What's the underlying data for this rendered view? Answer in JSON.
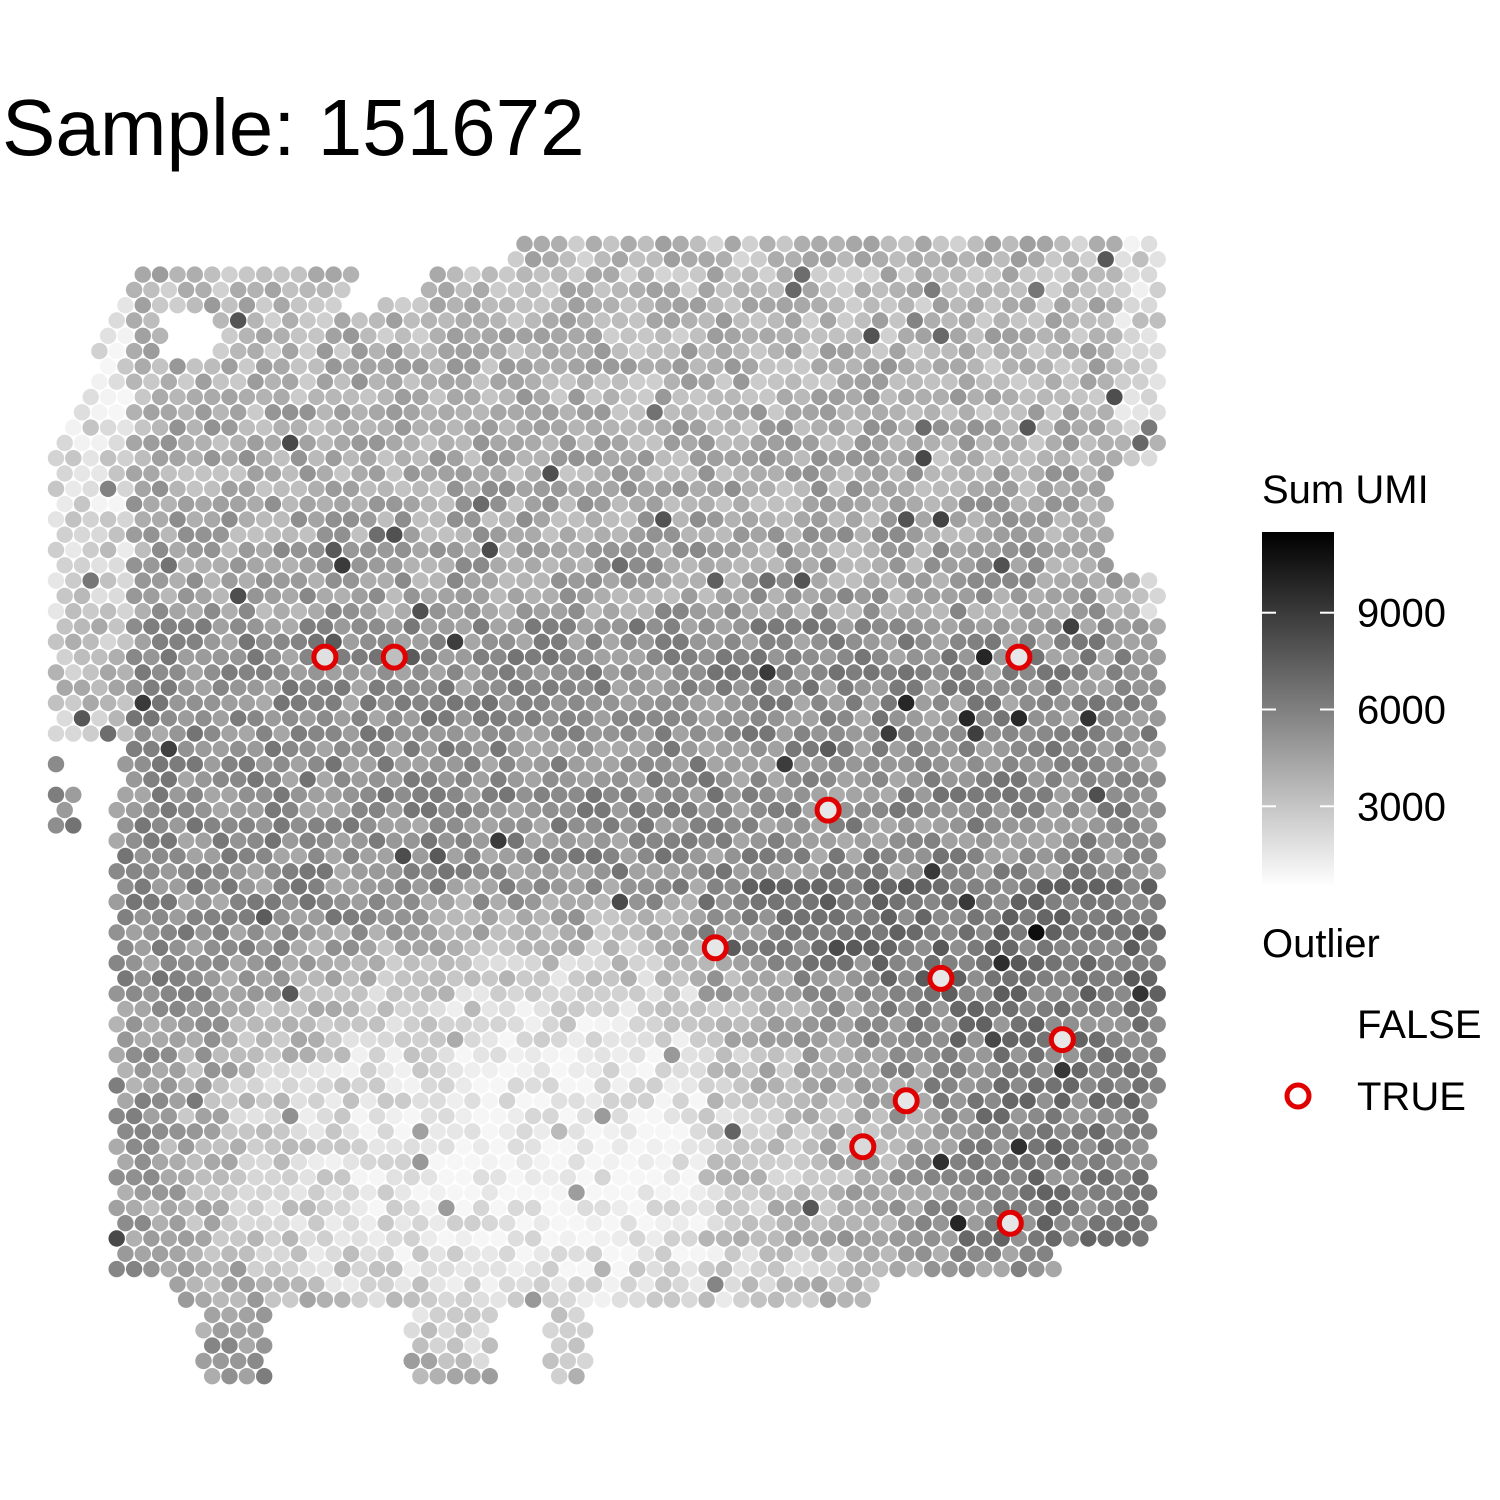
{
  "chart_data": {
    "type": "scatter",
    "title": "Sample: 151672",
    "xlabel": "",
    "ylabel": "",
    "grid": false,
    "legend_position": "right",
    "color_scale": {
      "title": "Sum UMI",
      "min": 500,
      "max": 11500,
      "low_color": "#ffffff",
      "high_color": "#000000",
      "ticks": [
        3000,
        6000,
        9000
      ],
      "tick_labels": [
        "3000",
        "6000",
        "9000"
      ]
    },
    "outlier_legend": {
      "title": "Outlier",
      "entries": [
        {
          "label": "FALSE",
          "marker": "none"
        },
        {
          "label": "TRUE",
          "marker": "red-ring"
        }
      ],
      "outlier_color": "#e00000"
    },
    "spot_field": {
      "description_note": "",
      "columns": 64,
      "rows": 76
    },
    "outliers": [
      {
        "col": 15,
        "row": 27,
        "sum_umi": 1500
      },
      {
        "col": 19,
        "row": 27,
        "sum_umi": 3000
      },
      {
        "col": 55,
        "row": 27,
        "sum_umi": 1200
      },
      {
        "col": 44,
        "row": 37,
        "sum_umi": 1200
      },
      {
        "col": 38,
        "row": 46,
        "sum_umi": 1200
      },
      {
        "col": 51,
        "row": 48,
        "sum_umi": 1200
      },
      {
        "col": 58,
        "row": 52,
        "sum_umi": 1200
      },
      {
        "col": 49,
        "row": 56,
        "sum_umi": 1200
      },
      {
        "col": 46,
        "row": 59,
        "sum_umi": 1800
      },
      {
        "col": 55,
        "row": 64,
        "sum_umi": 1200
      }
    ]
  }
}
